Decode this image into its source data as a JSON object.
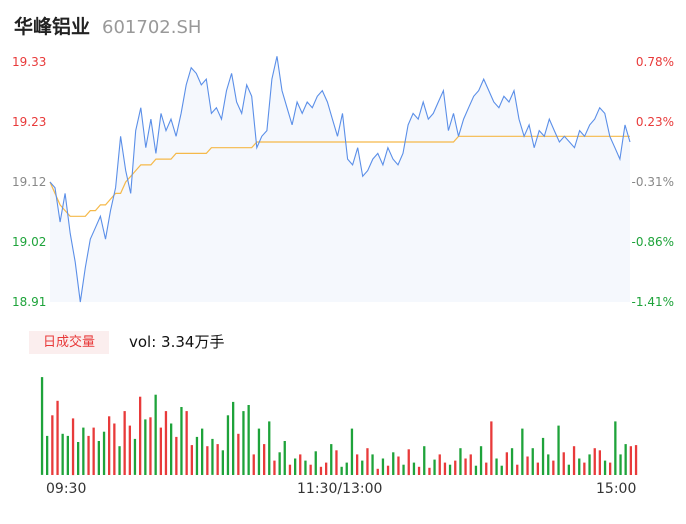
{
  "header": {
    "name": "华峰铝业",
    "code": "601702.SH"
  },
  "colors": {
    "up": "#e83a3a",
    "down": "#1ea33a",
    "neutral": "#888888",
    "price_line": "#5b8fe8",
    "avg_line": "#f5b94a",
    "area_fill": "#f5f8fd"
  },
  "volume": {
    "badge": "日成交量",
    "summary": "vol: 3.34万手"
  },
  "chart_data": {
    "type": "line",
    "y_ticks": [
      {
        "price": "19.33",
        "pct": "0.78%",
        "dir": "up"
      },
      {
        "price": "19.23",
        "pct": "0.23%",
        "dir": "up"
      },
      {
        "price": "19.12",
        "pct": "-0.31%",
        "dir": "neutral"
      },
      {
        "price": "19.02",
        "pct": "-0.86%",
        "dir": "down"
      },
      {
        "price": "18.91",
        "pct": "-1.41%",
        "dir": "down"
      }
    ],
    "ylim": [
      18.91,
      19.33
    ],
    "prev_close": 19.18,
    "x_ticks": [
      "09:30",
      "11:30/13:00",
      "15:00"
    ],
    "points": 116,
    "price": [
      19.12,
      19.11,
      19.05,
      19.1,
      19.03,
      18.98,
      18.91,
      18.97,
      19.02,
      19.04,
      19.06,
      19.02,
      19.07,
      19.11,
      19.2,
      19.14,
      19.1,
      19.21,
      19.25,
      19.18,
      19.23,
      19.17,
      19.24,
      19.21,
      19.23,
      19.2,
      19.24,
      19.29,
      19.32,
      19.31,
      19.29,
      19.3,
      19.24,
      19.25,
      19.23,
      19.28,
      19.31,
      19.26,
      19.24,
      19.29,
      19.27,
      19.18,
      19.2,
      19.21,
      19.3,
      19.34,
      19.28,
      19.25,
      19.22,
      19.26,
      19.24,
      19.26,
      19.25,
      19.27,
      19.28,
      19.26,
      19.23,
      19.2,
      19.24,
      19.16,
      19.15,
      19.18,
      19.13,
      19.14,
      19.16,
      19.17,
      19.15,
      19.18,
      19.16,
      19.15,
      19.17,
      19.22,
      19.24,
      19.23,
      19.26,
      19.23,
      19.24,
      19.26,
      19.28,
      19.21,
      19.24,
      19.2,
      19.23,
      19.25,
      19.27,
      19.28,
      19.3,
      19.28,
      19.26,
      19.25,
      19.27,
      19.26,
      19.28,
      19.23,
      19.2,
      19.22,
      19.18,
      19.21,
      19.2,
      19.23,
      19.21,
      19.19,
      19.2,
      19.19,
      19.18,
      19.21,
      19.2,
      19.22,
      19.23,
      19.25,
      19.24,
      19.2,
      19.18,
      19.16,
      19.22,
      19.19
    ],
    "avg": [
      19.12,
      19.1,
      19.08,
      19.07,
      19.06,
      19.06,
      19.06,
      19.06,
      19.07,
      19.07,
      19.08,
      19.08,
      19.09,
      19.1,
      19.1,
      19.12,
      19.13,
      19.14,
      19.15,
      19.15,
      19.15,
      19.16,
      19.16,
      19.16,
      19.16,
      19.17,
      19.17,
      19.17,
      19.17,
      19.17,
      19.17,
      19.17,
      19.18,
      19.18,
      19.18,
      19.18,
      19.18,
      19.18,
      19.18,
      19.18,
      19.18,
      19.19,
      19.19,
      19.19,
      19.19,
      19.19,
      19.19,
      19.19,
      19.19,
      19.19,
      19.19,
      19.19,
      19.19,
      19.19,
      19.19,
      19.19,
      19.19,
      19.19,
      19.19,
      19.19,
      19.19,
      19.19,
      19.19,
      19.19,
      19.19,
      19.19,
      19.19,
      19.19,
      19.19,
      19.19,
      19.19,
      19.19,
      19.19,
      19.19,
      19.19,
      19.19,
      19.19,
      19.19,
      19.19,
      19.19,
      19.19,
      19.2,
      19.2,
      19.2,
      19.2,
      19.2,
      19.2,
      19.2,
      19.2,
      19.2,
      19.2,
      19.2,
      19.2,
      19.2,
      19.2,
      19.2,
      19.2,
      19.2,
      19.2,
      19.2,
      19.2,
      19.2,
      19.2,
      19.2,
      19.2,
      19.2,
      19.2,
      19.2,
      19.2,
      19.2,
      19.2,
      19.2,
      19.2,
      19.2,
      19.2,
      19.2
    ],
    "volume": [
      0.95,
      0.38,
      0.58,
      0.72,
      0.4,
      0.38,
      0.55,
      0.32,
      0.46,
      0.38,
      0.46,
      0.33,
      0.42,
      0.57,
      0.5,
      0.28,
      0.62,
      0.48,
      0.35,
      0.76,
      0.54,
      0.56,
      0.78,
      0.46,
      0.62,
      0.5,
      0.37,
      0.66,
      0.62,
      0.29,
      0.37,
      0.45,
      0.28,
      0.35,
      0.3,
      0.24,
      0.58,
      0.71,
      0.4,
      0.62,
      0.68,
      0.2,
      0.45,
      0.3,
      0.52,
      0.14,
      0.22,
      0.33,
      0.1,
      0.16,
      0.2,
      0.14,
      0.1,
      0.23,
      0.08,
      0.12,
      0.3,
      0.24,
      0.08,
      0.12,
      0.45,
      0.2,
      0.14,
      0.26,
      0.2,
      0.06,
      0.16,
      0.09,
      0.22,
      0.18,
      0.1,
      0.25,
      0.12,
      0.08,
      0.28,
      0.07,
      0.15,
      0.2,
      0.12,
      0.1,
      0.14,
      0.26,
      0.16,
      0.2,
      0.09,
      0.28,
      0.12,
      0.52,
      0.16,
      0.09,
      0.22,
      0.26,
      0.1,
      0.45,
      0.18,
      0.26,
      0.12,
      0.36,
      0.2,
      0.14,
      0.48,
      0.22,
      0.1,
      0.28,
      0.16,
      0.12,
      0.2,
      0.26,
      0.24,
      0.14,
      0.12,
      0.52,
      0.2,
      0.3,
      0.28,
      0.29
    ],
    "volume_dir": [
      "down",
      "down",
      "up",
      "up",
      "down",
      "down",
      "up",
      "down",
      "down",
      "up",
      "up",
      "down",
      "down",
      "up",
      "up",
      "down",
      "up",
      "up",
      "down",
      "up",
      "down",
      "up",
      "down",
      "up",
      "up",
      "down",
      "up",
      "down",
      "up",
      "up",
      "down",
      "down",
      "up",
      "down",
      "up",
      "down",
      "down",
      "down",
      "up",
      "down",
      "down",
      "up",
      "down",
      "up",
      "down",
      "up",
      "down",
      "down",
      "up",
      "down",
      "up",
      "down",
      "up",
      "down",
      "up",
      "up",
      "down",
      "up",
      "down",
      "down",
      "down",
      "up",
      "down",
      "up",
      "down",
      "up",
      "down",
      "up",
      "down",
      "up",
      "down",
      "up",
      "down",
      "up",
      "down",
      "up",
      "down",
      "up",
      "up",
      "down",
      "up",
      "down",
      "up",
      "up",
      "down",
      "down",
      "up",
      "up",
      "down",
      "down",
      "up",
      "down",
      "up",
      "down",
      "up",
      "down",
      "up",
      "down",
      "down",
      "up",
      "down",
      "up",
      "down",
      "up",
      "down",
      "up",
      "down",
      "up",
      "up",
      "down",
      "up",
      "down",
      "down",
      "down",
      "up",
      "up"
    ]
  }
}
